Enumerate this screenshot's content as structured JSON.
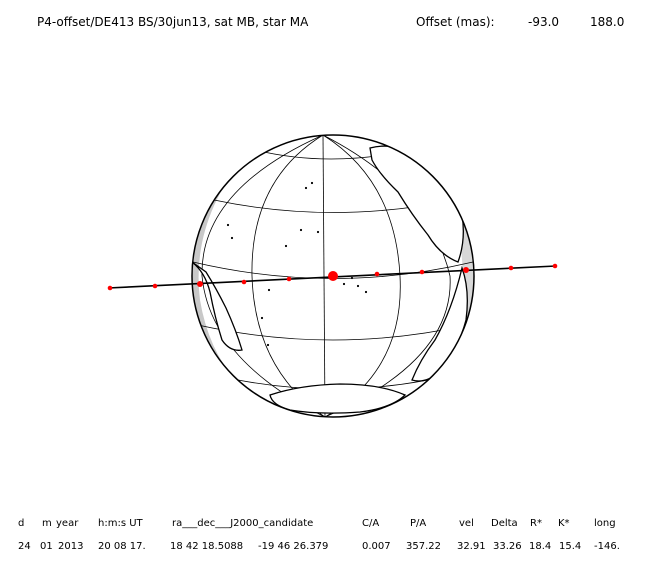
{
  "header": {
    "title": "P4-offset/DE413 BS/30jun13, sat MB, star MA",
    "offset_label": "Offset (mas):",
    "offset_x": "-93.0",
    "offset_y": "188.0"
  },
  "table": {
    "columns": [
      "d",
      "m",
      "year",
      "h:m:s UT",
      "ra___dec___J2000_candidate",
      "C/A",
      "P/A",
      "vel",
      "Delta",
      "R*",
      "K*",
      "long"
    ],
    "values": [
      "24",
      "01",
      "2013",
      "20 08 17.",
      "18 42 18.5088",
      "-19 46  26.379",
      "0.007",
      "357.22",
      "32.91",
      "33.26",
      "18.4",
      "15.4",
      "-146."
    ]
  },
  "colors": {
    "background": "#ffffff",
    "ink": "#000000",
    "shadow": "#c8c8c8",
    "track_marker": "#ff0000"
  }
}
